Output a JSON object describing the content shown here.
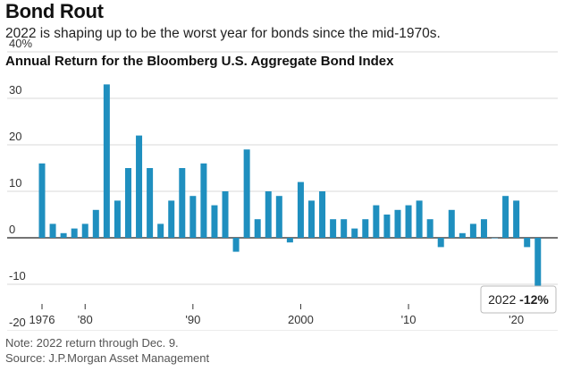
{
  "header": {
    "title": "Bond Rout",
    "subtitle": "2022 is shaping up to be the worst year for bonds since the mid-1970s."
  },
  "chart_data": {
    "type": "bar",
    "title": "Annual Return for the Bloomberg U.S. Aggregate Bond Index",
    "xlabel": "",
    "ylabel": "",
    "ylim": [
      -22,
      42
    ],
    "yticks": [
      -20,
      -10,
      0,
      10,
      20,
      30,
      40
    ],
    "ytick_labels": [
      "-20",
      "-10",
      "0",
      "10",
      "20",
      "30",
      "40%"
    ],
    "x": [
      1976,
      1977,
      1978,
      1979,
      1980,
      1981,
      1982,
      1983,
      1984,
      1985,
      1986,
      1987,
      1988,
      1989,
      1990,
      1991,
      1992,
      1993,
      1994,
      1995,
      1996,
      1997,
      1998,
      1999,
      2000,
      2001,
      2002,
      2003,
      2004,
      2005,
      2006,
      2007,
      2008,
      2009,
      2010,
      2011,
      2012,
      2013,
      2014,
      2015,
      2016,
      2017,
      2018,
      2019,
      2020,
      2021,
      2022
    ],
    "values": [
      16,
      3,
      1,
      2,
      3,
      6,
      33,
      8,
      15,
      22,
      15,
      3,
      8,
      15,
      9,
      16,
      7,
      10,
      -3,
      19,
      4,
      10,
      9,
      -1,
      12,
      8,
      10,
      4,
      4,
      2,
      4,
      7,
      5,
      6,
      7,
      8,
      4,
      -2,
      6,
      1,
      3,
      4,
      0,
      9,
      8,
      -2,
      -12
    ],
    "xticks": [
      1976,
      1980,
      1990,
      2000,
      2010,
      2020
    ],
    "xtick_labels": [
      "1976",
      "'80",
      "'90",
      "2000",
      "'10",
      "'20"
    ],
    "annotation": {
      "year": 2022,
      "label_year": "2022",
      "label_value": "-12%"
    },
    "bar_color": "#1f8fbf",
    "grid": true
  },
  "footer": {
    "note": "Note: 2022 return through Dec. 9.",
    "source": "Source: J.P.Morgan Asset Management"
  }
}
